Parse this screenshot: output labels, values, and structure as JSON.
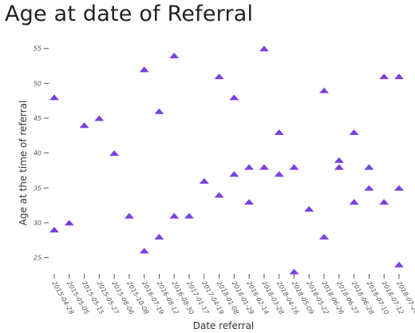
{
  "chart_data": {
    "type": "scatter",
    "title": "Age at date of Referral",
    "xlabel": "Date referral",
    "ylabel": "Age at the time of referral",
    "ylim": [
      23,
      56
    ],
    "yticks": [
      25,
      30,
      35,
      40,
      45,
      50,
      55
    ],
    "marker": "triangle",
    "marker_color": "#7a3fe0",
    "grid": false,
    "x_categories": [
      "2015-04-28",
      "2015-05-05",
      "2015-05-15",
      "2015-05-27",
      "2015-08-06",
      "2015-10-08",
      "2016-07-19",
      "2016-08-12",
      "2016-08-30",
      "2017-01-17",
      "2017-04-19",
      "2018-01-08",
      "2018-01-29",
      "2018-02-14",
      "2018-03-28",
      "2018-04-16",
      "2018-05-09",
      "2018-05-22",
      "2018-06-26",
      "2018-06-27",
      "2018-06-28",
      "2018-07-10",
      "2018-07-12",
      "2018-07-20"
    ],
    "points": [
      {
        "x": "2015-04-28",
        "y": 48
      },
      {
        "x": "2015-04-28",
        "y": 29
      },
      {
        "x": "2015-05-05",
        "y": 30
      },
      {
        "x": "2015-05-15",
        "y": 44
      },
      {
        "x": "2015-05-27",
        "y": 45
      },
      {
        "x": "2015-08-06",
        "y": 40
      },
      {
        "x": "2015-10-08",
        "y": 31
      },
      {
        "x": "2016-07-19",
        "y": 52
      },
      {
        "x": "2016-07-19",
        "y": 26
      },
      {
        "x": "2016-08-12",
        "y": 46
      },
      {
        "x": "2016-08-12",
        "y": 28
      },
      {
        "x": "2016-08-30",
        "y": 54
      },
      {
        "x": "2016-08-30",
        "y": 31
      },
      {
        "x": "2017-01-17",
        "y": 31
      },
      {
        "x": "2017-04-19",
        "y": 36
      },
      {
        "x": "2018-01-08",
        "y": 51
      },
      {
        "x": "2018-01-08",
        "y": 34
      },
      {
        "x": "2018-01-29",
        "y": 48
      },
      {
        "x": "2018-01-29",
        "y": 37
      },
      {
        "x": "2018-02-14",
        "y": 38
      },
      {
        "x": "2018-02-14",
        "y": 33
      },
      {
        "x": "2018-03-28",
        "y": 55
      },
      {
        "x": "2018-03-28",
        "y": 38
      },
      {
        "x": "2018-04-16",
        "y": 43
      },
      {
        "x": "2018-04-16",
        "y": 37
      },
      {
        "x": "2018-05-09",
        "y": 38
      },
      {
        "x": "2018-05-09",
        "y": 23
      },
      {
        "x": "2018-05-22",
        "y": 32
      },
      {
        "x": "2018-06-26",
        "y": 49
      },
      {
        "x": "2018-06-26",
        "y": 28
      },
      {
        "x": "2018-06-27",
        "y": 39
      },
      {
        "x": "2018-06-27",
        "y": 38
      },
      {
        "x": "2018-06-28",
        "y": 43
      },
      {
        "x": "2018-06-28",
        "y": 33
      },
      {
        "x": "2018-07-10",
        "y": 38
      },
      {
        "x": "2018-07-10",
        "y": 35
      },
      {
        "x": "2018-07-12",
        "y": 51
      },
      {
        "x": "2018-07-12",
        "y": 33
      },
      {
        "x": "2018-07-20",
        "y": 51
      },
      {
        "x": "2018-07-20",
        "y": 35
      },
      {
        "x": "2018-07-20",
        "y": 24
      }
    ]
  }
}
